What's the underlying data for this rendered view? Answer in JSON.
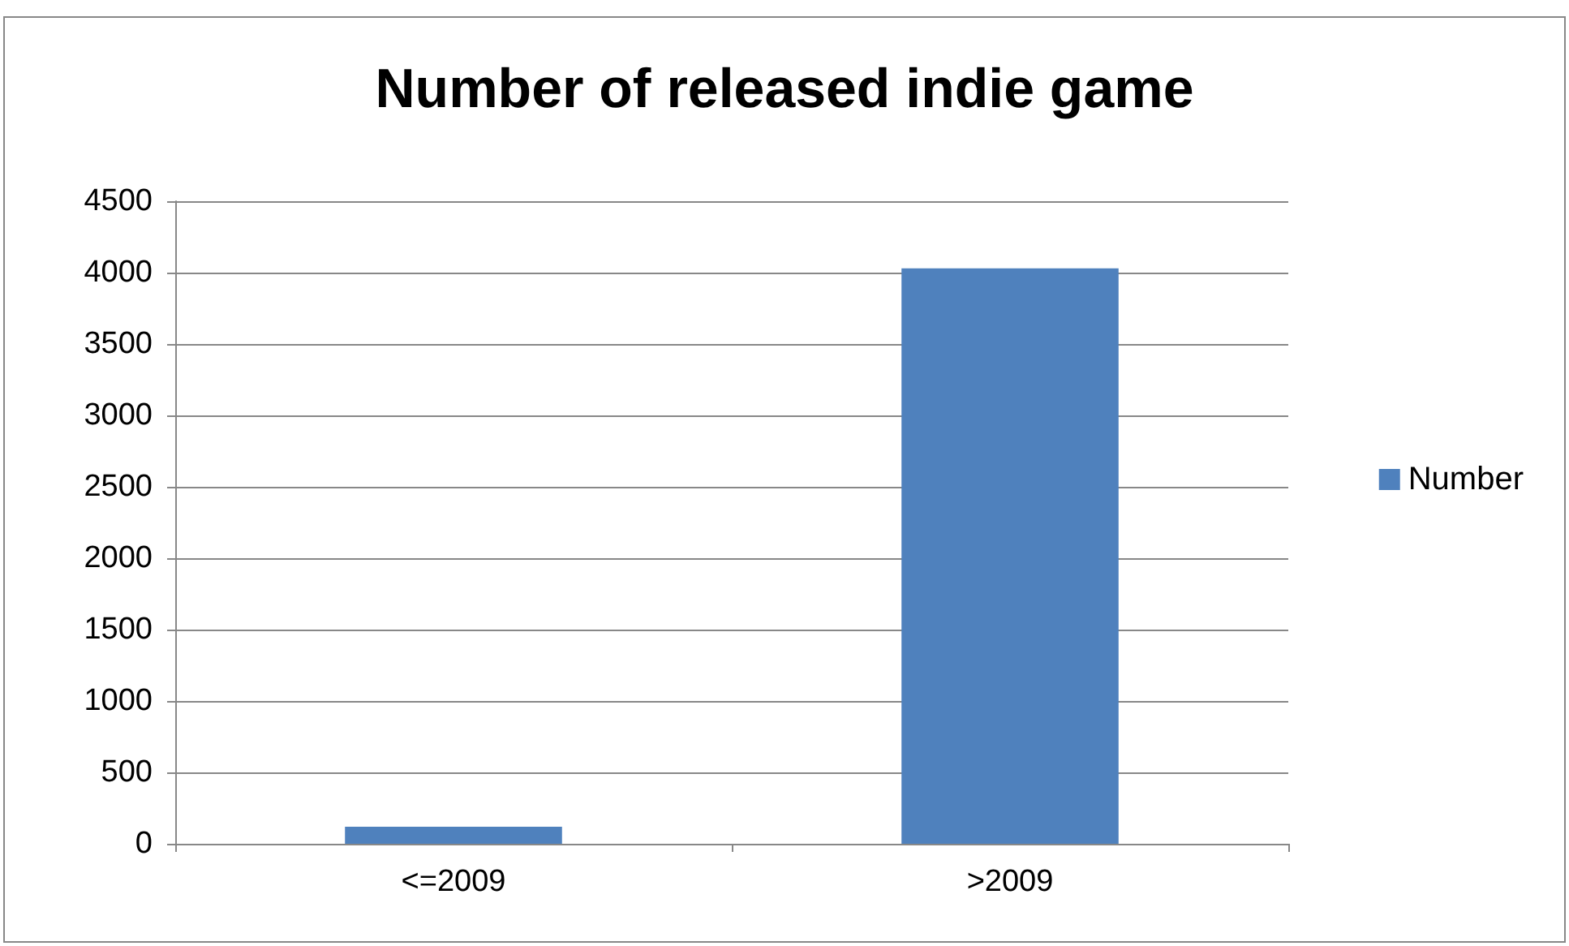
{
  "chart_data": {
    "type": "bar",
    "title": "Number of released indie game",
    "categories": [
      "<=2009",
      ">2009"
    ],
    "series": [
      {
        "name": "Number",
        "color": "#4f81bd",
        "values": [
          120,
          4030
        ]
      }
    ],
    "ylim": [
      0,
      4500
    ],
    "yticks": [
      0,
      500,
      1000,
      1500,
      2000,
      2500,
      3000,
      3500,
      4000,
      4500
    ],
    "grid": "y",
    "legend": "right"
  }
}
